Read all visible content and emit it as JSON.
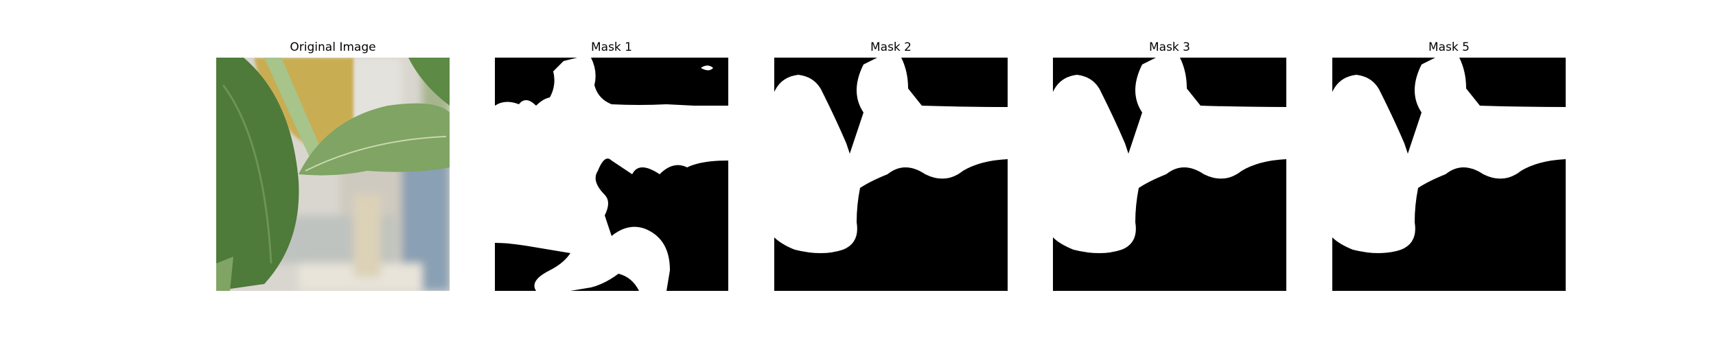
{
  "figure": {
    "panels": [
      {
        "title": "Original Image",
        "kind": "photo"
      },
      {
        "title": "Mask 1",
        "kind": "mask"
      },
      {
        "title": "Mask 2",
        "kind": "mask"
      },
      {
        "title": "Mask 3",
        "kind": "mask"
      },
      {
        "title": "Mask 5",
        "kind": "mask"
      }
    ]
  },
  "colors": {
    "mask_background": "#000000",
    "mask_foreground": "#ffffff",
    "leaf_dark": "#4e7a3a",
    "leaf_light": "#7fa463",
    "leaf_yellow": "#c9ad52",
    "background_blur": "#d9d6cf",
    "sky_blue": "#6f8fb0"
  }
}
